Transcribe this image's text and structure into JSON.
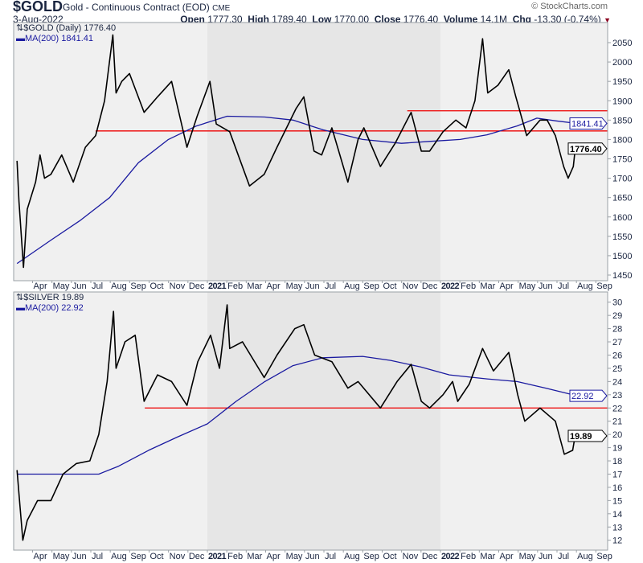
{
  "header": {
    "symbol": "$GOLD",
    "name": "Gold - Continuous Contract (EOD)",
    "exchange": "CME",
    "date": "3-Aug-2022",
    "copyright": "© StockCharts.com",
    "open_label": "Open",
    "open": "1777.30",
    "high_label": "High",
    "high": "1789.40",
    "low_label": "Low",
    "low": "1770.00",
    "close_label": "Close",
    "close": "1776.40",
    "volume_label": "Volume",
    "volume": "14.1M",
    "chg_label": "Chg",
    "chg": "-13.30 (-0.74%)",
    "chg_icon": "triangle-down-icon"
  },
  "colors": {
    "price": "#000000",
    "ma": "#1a1aa0",
    "line": "#ee0000",
    "shade": "#e6e6e6",
    "bg": "#f0f0f0"
  },
  "x_ticks": [
    "Apr",
    "May",
    "Jun",
    "Jul",
    "Aug",
    "Sep",
    "Oct",
    "Nov",
    "Dec",
    "2021",
    "Feb",
    "Mar",
    "Apr",
    "May",
    "Jun",
    "Jul",
    "Aug",
    "Sep",
    "Oct",
    "Nov",
    "Dec",
    "2022",
    "Feb",
    "Mar",
    "Apr",
    "May",
    "Jun",
    "Jul",
    "Aug",
    "Sep"
  ],
  "chart_data": [
    {
      "type": "line",
      "title": "$GOLD (Daily)",
      "legend": [
        "$GOLD (Daily) 1776.40",
        "MA(200) 1841.41"
      ],
      "last_price_label": "1776.40",
      "ma_label": "1841.41",
      "ylim": [
        1430,
        2090
      ],
      "y_ticks": [
        "2050",
        "2000",
        "1950",
        "1900",
        "1850",
        "1800",
        "1750",
        "1700",
        "1650",
        "1600",
        "1550",
        "1500",
        "1450"
      ],
      "y_tick_values": [
        2050,
        2000,
        1950,
        1900,
        1850,
        1800,
        1750,
        1700,
        1650,
        1600,
        1550,
        1500,
        1450
      ],
      "hlines": [
        {
          "value": 1822,
          "from": "2020-07-10"
        },
        {
          "value": 1874,
          "from": "2021-11-10"
        }
      ],
      "series": [
        {
          "name": "$GOLD",
          "dates": [
            "2020-03-09",
            "2020-03-12",
            "2020-03-19",
            "2020-03-25",
            "2020-04-07",
            "2020-04-14",
            "2020-04-21",
            "2020-05-01",
            "2020-05-18",
            "2020-06-05",
            "2020-06-24",
            "2020-07-10",
            "2020-07-24",
            "2020-08-06",
            "2020-08-11",
            "2020-08-20",
            "2020-09-01",
            "2020-09-24",
            "2020-10-15",
            "2020-11-06",
            "2020-11-30",
            "2020-12-16",
            "2021-01-05",
            "2021-01-15",
            "2021-02-05",
            "2021-03-08",
            "2021-03-31",
            "2021-04-20",
            "2021-05-20",
            "2021-06-01",
            "2021-06-17",
            "2021-06-29",
            "2021-07-15",
            "2021-08-09",
            "2021-08-25",
            "2021-09-03",
            "2021-09-29",
            "2021-10-22",
            "2021-11-16",
            "2021-12-02",
            "2021-12-15",
            "2022-01-05",
            "2022-01-25",
            "2022-02-10",
            "2022-02-24",
            "2022-03-08",
            "2022-03-16",
            "2022-04-01",
            "2022-04-18",
            "2022-04-29",
            "2022-05-16",
            "2022-06-06",
            "2022-06-17",
            "2022-06-30",
            "2022-07-13",
            "2022-07-20",
            "2022-07-28",
            "2022-08-01",
            "2022-08-03"
          ],
          "values": [
            1745,
            1640,
            1470,
            1620,
            1690,
            1760,
            1700,
            1710,
            1760,
            1690,
            1780,
            1810,
            1900,
            2070,
            1920,
            1950,
            1970,
            1870,
            1910,
            1950,
            1780,
            1860,
            1950,
            1840,
            1820,
            1680,
            1710,
            1780,
            1880,
            1910,
            1770,
            1760,
            1830,
            1690,
            1800,
            1830,
            1730,
            1790,
            1870,
            1770,
            1770,
            1820,
            1850,
            1830,
            1900,
            2060,
            1920,
            1940,
            1980,
            1910,
            1810,
            1850,
            1850,
            1810,
            1730,
            1700,
            1730,
            1790,
            1776.4
          ]
        },
        {
          "name": "MA(200)",
          "dates": [
            "2020-03-09",
            "2020-05-01",
            "2020-06-15",
            "2020-08-01",
            "2020-09-15",
            "2020-11-01",
            "2020-12-15",
            "2021-02-01",
            "2021-04-01",
            "2021-05-15",
            "2021-07-01",
            "2021-09-01",
            "2021-11-01",
            "2021-12-15",
            "2022-02-01",
            "2022-03-15",
            "2022-05-01",
            "2022-06-01",
            "2022-07-01",
            "2022-08-03"
          ],
          "values": [
            1480,
            1540,
            1590,
            1650,
            1740,
            1800,
            1835,
            1860,
            1858,
            1850,
            1825,
            1800,
            1790,
            1795,
            1800,
            1812,
            1835,
            1855,
            1848,
            1841.41
          ]
        }
      ]
    },
    {
      "type": "line",
      "title": "$SILVER",
      "legend": [
        "$SILVER 19.89",
        "MA(200) 22.92"
      ],
      "last_price_label": "19.89",
      "ma_label": "22.92",
      "ylim": [
        11.2,
        30.8
      ],
      "y_ticks": [
        "30",
        "29",
        "28",
        "27",
        "26",
        "25",
        "24",
        "23",
        "22",
        "21",
        "20",
        "19",
        "18",
        "17",
        "16",
        "15",
        "14",
        "13",
        "12"
      ],
      "y_tick_values": [
        30,
        29,
        28,
        27,
        26,
        25,
        24,
        23,
        22,
        21,
        20,
        19,
        18,
        17,
        16,
        15,
        14,
        13,
        12
      ],
      "hlines": [
        {
          "value": 22,
          "from": "2020-09-25"
        }
      ],
      "series": [
        {
          "name": "$SILVER",
          "dates": [
            "2020-03-09",
            "2020-03-12",
            "2020-03-18",
            "2020-03-25",
            "2020-04-10",
            "2020-05-01",
            "2020-05-20",
            "2020-06-10",
            "2020-07-01",
            "2020-07-15",
            "2020-07-28",
            "2020-08-07",
            "2020-08-11",
            "2020-08-25",
            "2020-09-10",
            "2020-09-24",
            "2020-10-15",
            "2020-11-06",
            "2020-11-30",
            "2020-12-17",
            "2021-01-06",
            "2021-01-20",
            "2021-02-01",
            "2021-02-05",
            "2021-02-25",
            "2021-03-31",
            "2021-04-20",
            "2021-05-18",
            "2021-06-01",
            "2021-06-18",
            "2021-07-15",
            "2021-08-09",
            "2021-08-25",
            "2021-09-29",
            "2021-10-25",
            "2021-11-16",
            "2021-12-02",
            "2021-12-15",
            "2022-01-05",
            "2022-01-20",
            "2022-01-28",
            "2022-02-15",
            "2022-03-08",
            "2022-03-25",
            "2022-04-18",
            "2022-05-02",
            "2022-05-13",
            "2022-06-06",
            "2022-06-30",
            "2022-07-14",
            "2022-07-27",
            "2022-08-01",
            "2022-08-03"
          ],
          "values": [
            17.3,
            15.5,
            12,
            13.5,
            15,
            15,
            17,
            17.8,
            18,
            20,
            24,
            29.3,
            25,
            27,
            27.5,
            22.5,
            24.5,
            24,
            22.2,
            25.5,
            27.5,
            25,
            29.8,
            26.5,
            27,
            24.3,
            26,
            28,
            28.3,
            26,
            25.5,
            23.5,
            24,
            22,
            24,
            25.3,
            22.5,
            22,
            23,
            24,
            22.5,
            23.8,
            26.5,
            24.8,
            26.2,
            23,
            21,
            22,
            21,
            18.5,
            18.8,
            20.2,
            19.89
          ]
        },
        {
          "name": "MA(200)",
          "dates": [
            "2020-03-09",
            "2020-05-01",
            "2020-07-15",
            "2020-08-15",
            "2020-10-01",
            "2020-11-15",
            "2021-01-01",
            "2021-02-15",
            "2021-04-01",
            "2021-05-15",
            "2021-07-01",
            "2021-09-01",
            "2021-10-15",
            "2021-12-01",
            "2022-01-15",
            "2022-03-15",
            "2022-05-01",
            "2022-06-15",
            "2022-08-03"
          ],
          "values": [
            17,
            17,
            17,
            17.6,
            18.8,
            19.8,
            20.8,
            22.5,
            24,
            25.2,
            25.8,
            25.9,
            25.6,
            25.1,
            24.5,
            24.2,
            24,
            23.5,
            22.92
          ]
        }
      ]
    }
  ]
}
